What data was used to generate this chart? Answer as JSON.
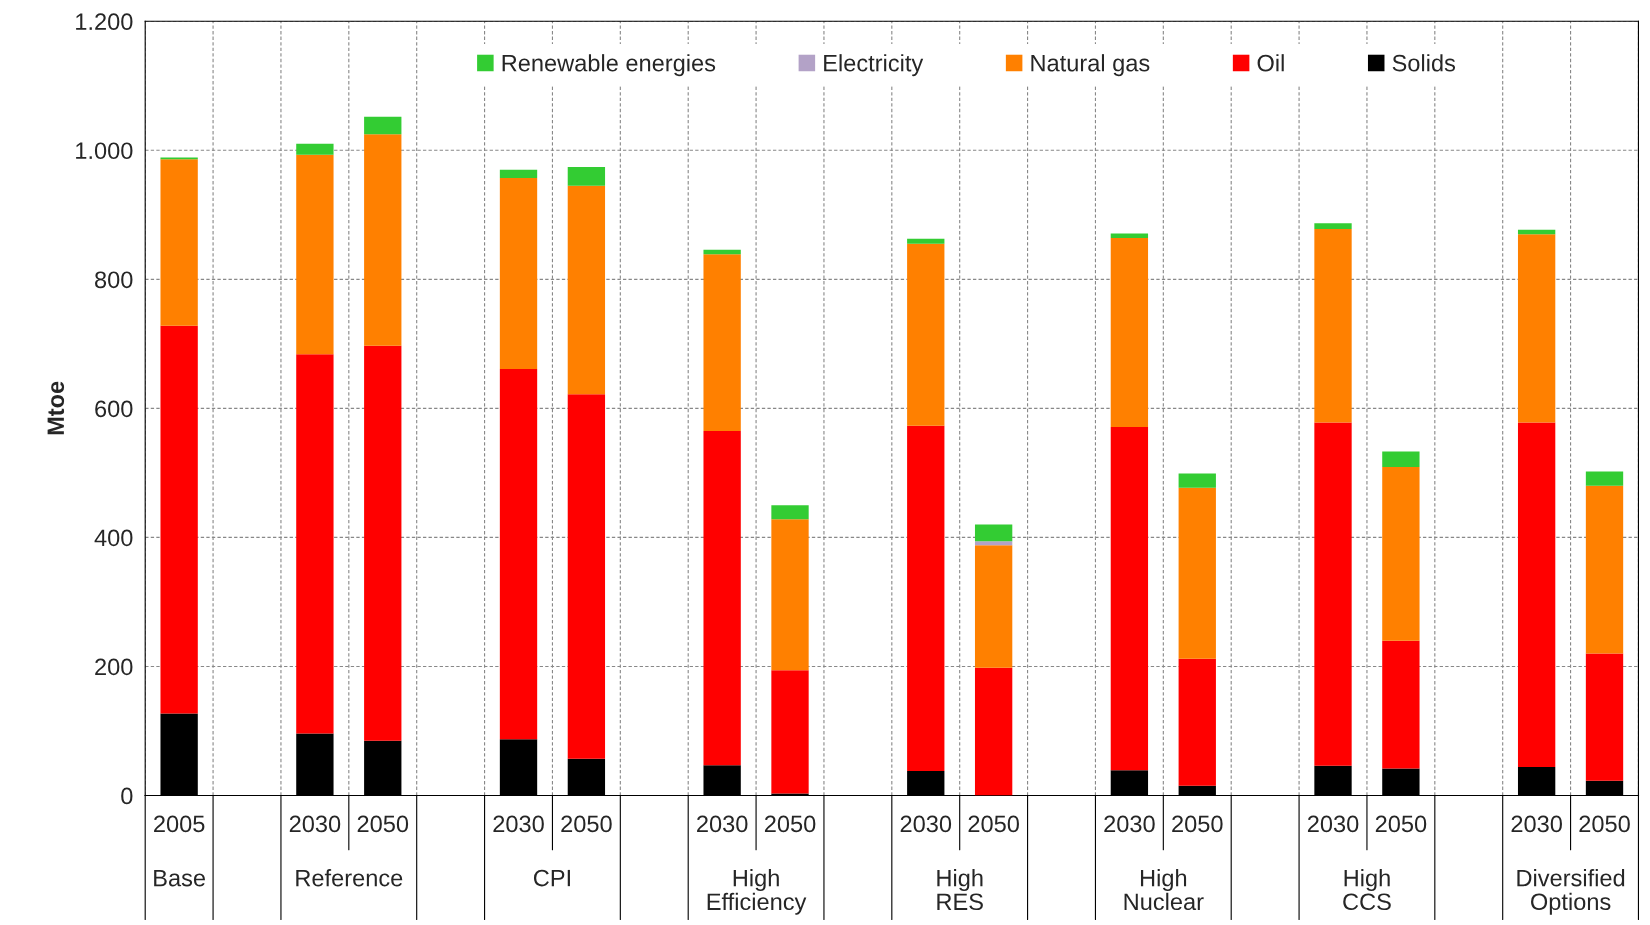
{
  "chart_data": {
    "type": "bar",
    "stacked": true,
    "ylabel": "Mtoe",
    "categories": [
      "2005",
      null,
      "2030",
      "2050",
      null,
      "2030",
      "2050",
      null,
      "2030",
      "2050",
      null,
      "2030",
      "2050",
      null,
      "2030",
      "2050",
      null,
      "2030",
      "2050",
      null,
      "2030",
      "2050"
    ],
    "annotations": [
      "Base",
      "Reference",
      "CPI",
      "High\nEfficiency",
      "High\nRES",
      "High\nNuclear",
      "High\nCCS",
      "Diversified\nOptions"
    ],
    "series": [
      {
        "name": "Solids",
        "color": "#000000",
        "values": [
          127,
          null,
          96,
          85,
          null,
          87,
          57,
          null,
          47,
          3,
          null,
          38,
          0,
          null,
          39,
          15,
          null,
          46,
          42,
          null,
          44,
          23
        ]
      },
      {
        "name": "Oil",
        "color": "#ff0000",
        "values": [
          601,
          null,
          588,
          612,
          null,
          574,
          565,
          null,
          518,
          191,
          null,
          535,
          198,
          null,
          532,
          197,
          null,
          532,
          198,
          null,
          534,
          197
        ]
      },
      {
        "name": "Natural gas",
        "color": "#ff8000",
        "values": [
          258,
          null,
          309,
          328,
          null,
          296,
          323,
          null,
          274,
          234,
          null,
          282,
          190,
          null,
          293,
          265,
          null,
          300,
          269,
          null,
          292,
          260
        ]
      },
      {
        "name": "Electricity",
        "color": "#b3a2c7",
        "values": [
          0,
          null,
          0,
          0,
          null,
          0,
          0,
          null,
          0,
          0,
          null,
          0,
          6,
          null,
          0,
          0,
          null,
          0,
          0,
          null,
          0,
          0
        ]
      },
      {
        "name": "Renewable energies",
        "color": "#33cc33",
        "values": [
          3,
          null,
          17,
          27,
          null,
          13,
          29,
          null,
          7,
          22,
          null,
          8,
          26,
          null,
          7,
          22,
          null,
          9,
          24,
          null,
          7,
          22
        ]
      }
    ],
    "ylim": [
      0,
      1200
    ],
    "yticks": [
      0,
      200,
      400,
      600,
      800,
      {
        "value": 1000,
        "label": "1.000"
      },
      {
        "value": 1200,
        "label": "1.200"
      }
    ],
    "grid": true,
    "legend": "top"
  }
}
